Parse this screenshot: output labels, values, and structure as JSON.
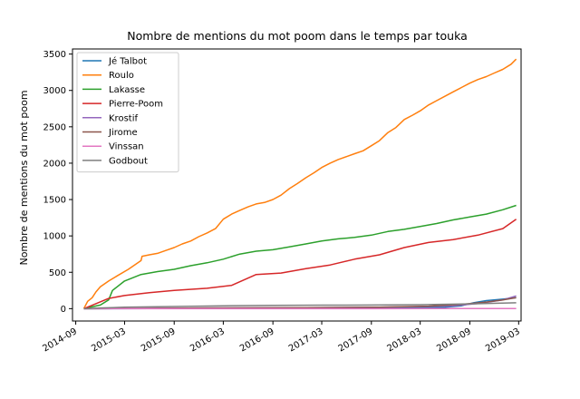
{
  "chart_data": {
    "type": "line",
    "title": "Nombre de mentions du mot poom dans le temps par touka",
    "xlabel": "",
    "ylabel": "Nombre de mentions du mot poom",
    "x_type": "date",
    "xlim": [
      "2014-08-20",
      "2019-03-10"
    ],
    "ylim": [
      -170,
      3570
    ],
    "x_ticks": [
      "2014-09",
      "2015-03",
      "2015-09",
      "2016-03",
      "2016-09",
      "2017-03",
      "2017-09",
      "2018-03",
      "2018-09",
      "2019-03"
    ],
    "y_ticks": [
      0,
      500,
      1000,
      1500,
      2000,
      2500,
      3000,
      3500
    ],
    "grid": false,
    "legend_position": "top-left",
    "series": [
      {
        "name": "Jé Talbot",
        "color": "#1f77b4",
        "x": [
          "2014-10-01",
          "2015-01-01",
          "2015-06-01",
          "2016-01-01",
          "2016-06-01",
          "2017-01-01",
          "2017-06-01",
          "2018-01-01",
          "2018-06-01",
          "2018-08-01",
          "2018-09-15",
          "2018-11-01",
          "2019-01-01",
          "2019-02-20"
        ],
        "values": [
          0,
          0,
          2,
          5,
          8,
          10,
          12,
          14,
          20,
          40,
          80,
          110,
          130,
          150
        ]
      },
      {
        "name": "Roulo",
        "color": "#ff7f0e",
        "x": [
          "2014-10-01",
          "2014-10-15",
          "2014-11-01",
          "2014-11-15",
          "2014-12-01",
          "2015-01-01",
          "2015-02-01",
          "2015-03-15",
          "2015-05-01",
          "2015-05-05",
          "2015-06-01",
          "2015-07-01",
          "2015-08-01",
          "2015-09-01",
          "2015-10-01",
          "2015-11-01",
          "2015-12-01",
          "2016-01-01",
          "2016-02-01",
          "2016-03-01",
          "2016-04-01",
          "2016-05-01",
          "2016-06-01",
          "2016-07-01",
          "2016-08-01",
          "2016-09-01",
          "2016-10-01",
          "2016-11-01",
          "2016-12-01",
          "2017-01-01",
          "2017-02-01",
          "2017-03-01",
          "2017-04-01",
          "2017-05-01",
          "2017-06-01",
          "2017-07-01",
          "2017-08-01",
          "2017-09-01",
          "2017-10-01",
          "2017-11-01",
          "2017-12-01",
          "2018-01-01",
          "2018-02-01",
          "2018-03-01",
          "2018-04-01",
          "2018-05-01",
          "2018-06-01",
          "2018-07-01",
          "2018-08-01",
          "2018-09-01",
          "2018-10-01",
          "2018-11-01",
          "2018-12-01",
          "2019-01-01",
          "2019-02-01",
          "2019-02-20"
        ],
        "values": [
          0,
          100,
          150,
          230,
          300,
          380,
          450,
          540,
          660,
          720,
          740,
          760,
          800,
          840,
          890,
          930,
          990,
          1040,
          1100,
          1230,
          1300,
          1350,
          1400,
          1440,
          1460,
          1500,
          1560,
          1650,
          1720,
          1800,
          1870,
          1940,
          2000,
          2050,
          2090,
          2130,
          2170,
          2240,
          2310,
          2420,
          2490,
          2600,
          2660,
          2720,
          2800,
          2860,
          2920,
          2980,
          3040,
          3100,
          3150,
          3190,
          3240,
          3290,
          3360,
          3430
        ]
      },
      {
        "name": "Lakasse",
        "color": "#2ca02c",
        "x": [
          "2014-10-01",
          "2014-12-01",
          "2015-01-01",
          "2015-01-15",
          "2015-03-01",
          "2015-05-01",
          "2015-07-01",
          "2015-09-01",
          "2015-11-01",
          "2016-01-01",
          "2016-03-01",
          "2016-05-01",
          "2016-07-01",
          "2016-09-01",
          "2016-11-01",
          "2017-01-01",
          "2017-03-01",
          "2017-05-01",
          "2017-07-01",
          "2017-09-01",
          "2017-11-01",
          "2018-01-01",
          "2018-03-01",
          "2018-05-01",
          "2018-07-01",
          "2018-09-01",
          "2018-11-01",
          "2019-01-01",
          "2019-02-20"
        ],
        "values": [
          0,
          50,
          120,
          250,
          380,
          470,
          510,
          540,
          590,
          630,
          680,
          750,
          790,
          810,
          850,
          890,
          930,
          960,
          980,
          1010,
          1060,
          1090,
          1130,
          1170,
          1220,
          1260,
          1300,
          1360,
          1420
        ]
      },
      {
        "name": "Pierre-Poom",
        "color": "#d62728",
        "x": [
          "2014-10-01",
          "2015-01-01",
          "2015-03-01",
          "2015-06-01",
          "2015-09-01",
          "2016-01-01",
          "2016-04-01",
          "2016-07-01",
          "2016-10-01",
          "2017-01-01",
          "2017-04-01",
          "2017-07-01",
          "2017-10-01",
          "2018-01-01",
          "2018-04-01",
          "2018-07-01",
          "2018-10-01",
          "2019-01-01",
          "2019-02-20"
        ],
        "values": [
          0,
          140,
          180,
          220,
          250,
          280,
          320,
          470,
          490,
          550,
          600,
          680,
          740,
          840,
          910,
          950,
          1010,
          1100,
          1230
        ]
      },
      {
        "name": "Krostif",
        "color": "#9467bd",
        "x": [
          "2014-10-01",
          "2015-06-01",
          "2016-01-01",
          "2017-01-01",
          "2017-10-01",
          "2018-04-01",
          "2018-07-01",
          "2018-10-01",
          "2019-01-01",
          "2019-02-20"
        ],
        "values": [
          0,
          5,
          10,
          15,
          20,
          30,
          40,
          70,
          120,
          175
        ]
      },
      {
        "name": "Jirome",
        "color": "#8c564b",
        "x": [
          "2014-10-01",
          "2015-06-01",
          "2016-01-01",
          "2017-01-01",
          "2017-10-01",
          "2018-04-01",
          "2018-08-01",
          "2018-11-01",
          "2019-01-01",
          "2019-02-20"
        ],
        "values": [
          0,
          5,
          10,
          15,
          20,
          35,
          60,
          90,
          120,
          150
        ]
      },
      {
        "name": "Vinssan",
        "color": "#e377c2",
        "x": [
          "2014-10-01",
          "2016-06-01",
          "2017-09-01",
          "2018-06-01",
          "2019-02-20"
        ],
        "values": [
          0,
          0,
          0,
          2,
          2
        ]
      },
      {
        "name": "Godbout",
        "color": "#7f7f7f",
        "x": [
          "2014-10-01",
          "2014-12-01",
          "2015-03-01",
          "2015-09-01",
          "2016-03-01",
          "2016-09-01",
          "2017-03-01",
          "2017-09-01",
          "2018-03-01",
          "2018-09-01",
          "2019-02-20"
        ],
        "values": [
          0,
          10,
          20,
          30,
          40,
          45,
          48,
          50,
          55,
          65,
          80
        ]
      }
    ]
  }
}
